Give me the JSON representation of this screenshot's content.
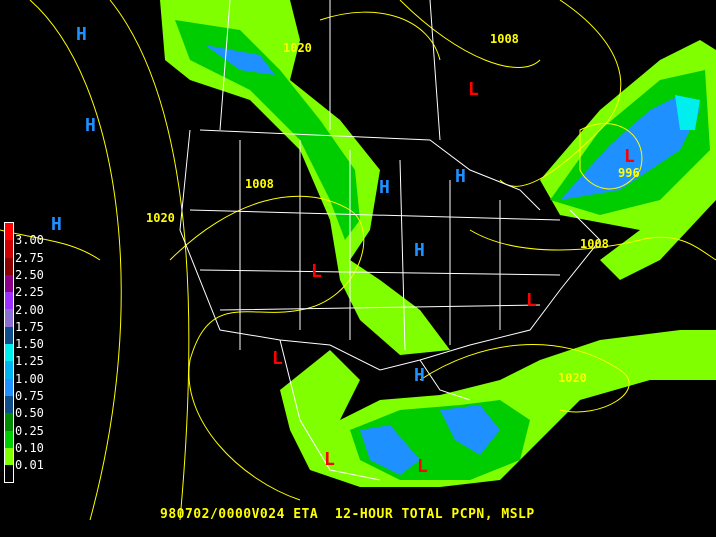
{
  "title": "980702/0000V024 ETA  12-HOUR TOTAL PCPN, MSLP",
  "legend": {
    "colors": [
      "#ff0000",
      "#cc0000",
      "#8b0000",
      "#8b008b",
      "#9b30ff",
      "#8a6fd0",
      "#104e8b",
      "#00eeee",
      "#00b2ee",
      "#1e90ff",
      "#104e8b",
      "#008b00",
      "#00cd00",
      "#7fff00",
      "#000000"
    ],
    "labels": [
      "3.00",
      "2.75",
      "2.50",
      "2.25",
      "2.00",
      "1.75",
      "1.50",
      "1.25",
      "1.00",
      "0.75",
      "0.50",
      "0.25",
      "0.10",
      "0.01"
    ]
  },
  "pressure_labels": [
    {
      "text": "H",
      "kind": "high"
    },
    {
      "text": "H",
      "kind": "high"
    },
    {
      "text": "H",
      "kind": "high"
    },
    {
      "text": "H",
      "kind": "high"
    },
    {
      "text": "H",
      "kind": "high"
    },
    {
      "text": "H",
      "kind": "high"
    },
    {
      "text": "H",
      "kind": "high"
    },
    {
      "text": "L",
      "kind": "low"
    },
    {
      "text": "L",
      "kind": "low"
    },
    {
      "text": "L",
      "kind": "low"
    },
    {
      "text": "L",
      "kind": "low"
    },
    {
      "text": "L",
      "kind": "low"
    },
    {
      "text": "L",
      "kind": "low"
    },
    {
      "text": "L",
      "kind": "low"
    }
  ],
  "isobar_labels": [
    "1020",
    "1008",
    "1008",
    "1020",
    "996",
    "1008",
    "1020"
  ],
  "colors": {
    "high": "#1e90ff",
    "low": "#ff0000",
    "isobar": "#ffff00",
    "borders": "#ffffff"
  }
}
